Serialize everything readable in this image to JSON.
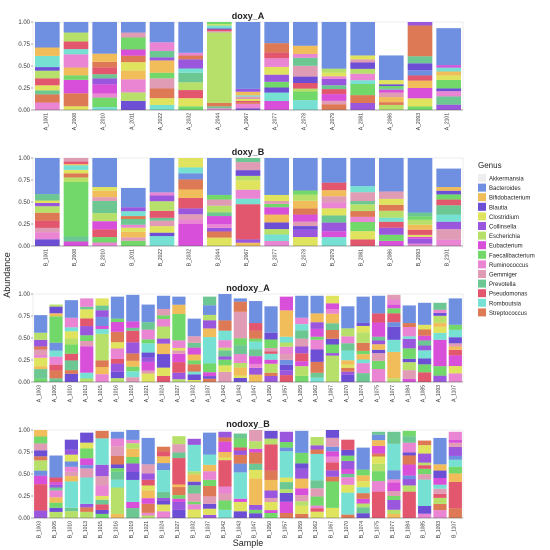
{
  "chart_data": {
    "type": "bar",
    "stacked": true,
    "xlabel": "Sample",
    "ylabel": "Abundance",
    "yticks": [
      "0.00",
      "0.25",
      "0.50",
      "0.75",
      "1.00"
    ],
    "ylim": [
      0,
      1
    ],
    "legend": {
      "title": "Genus",
      "placement": "right",
      "entries": [
        "Akkermansia",
        "Bacteroides",
        "Bifidobacterium",
        "Blautia",
        "Clostridium",
        "Collinsella",
        "Escherichia",
        "Eubacterium",
        "Faecalibacterium",
        "Ruminococcus",
        "Gemmiger",
        "Prevotella",
        "Pseudomonas",
        "Romboutsia",
        "Streptococcus"
      ]
    },
    "genus_colors": {
      "Akkermansia": "#eeeeee",
      "Bacteroides": "#6f8fe0",
      "Bifidobacterium": "#f0bd5a",
      "Blautia": "#6d4fd6",
      "Clostridium": "#dfe35e",
      "Collinsella": "#9a57dd",
      "Escherichia": "#b7e06a",
      "Eubacterium": "#d84fd9",
      "Faecalibacterium": "#72d86a",
      "Ruminococcus": "#e985d3",
      "Gemmiger": "#e09cb5",
      "Prevotella": "#6cc793",
      "Pseudomonas": "#e2576e",
      "Romboutsia": "#76e0d2",
      "Streptococcus": "#dd7a55"
    },
    "panels": [
      {
        "title": "doxy_A",
        "samples": [
          "A_1001",
          "A_2008",
          "A_2010",
          "A_2011",
          "A_2022",
          "A_2032",
          "A_2044",
          "A_2067",
          "A_2077",
          "A_2078",
          "A_2079",
          "A_2081",
          "A_2086",
          "A_2093",
          "A_2101"
        ],
        "totals": [
          1.0,
          1.0,
          1.0,
          1.0,
          1.0,
          1.0,
          1.0,
          1.0,
          1.0,
          1.0,
          1.0,
          1.0,
          0.62,
          1.0,
          0.93
        ],
        "dominant": [
          {
            "genus": "Bacteroides",
            "share": 0.29
          },
          {
            "genus": "Bacteroides",
            "share": 0.12
          },
          {
            "genus": "Bacteroides",
            "share": 0.36
          },
          {
            "genus": "Bacteroides",
            "share": 0.12
          },
          {
            "genus": "Bacteroides",
            "share": 0.23
          },
          {
            "genus": "Bacteroides",
            "share": 0.35
          },
          {
            "genus": "Escherichia",
            "share": 0.8
          },
          {
            "genus": "Bacteroides",
            "share": 0.76
          },
          {
            "genus": "Bacteroides",
            "share": 0.24
          },
          {
            "genus": "Bacteroides",
            "share": 0.27
          },
          {
            "genus": "Bacteroides",
            "share": 0.53
          },
          {
            "genus": "Bacteroides",
            "share": 0.38
          },
          {
            "genus": "Bacteroides",
            "share": 0.28
          },
          {
            "genus": "Streptococcus",
            "share": 0.35
          },
          {
            "genus": "Bacteroides",
            "share": 0.42
          }
        ]
      },
      {
        "title": "doxy_B",
        "samples": [
          "B_1001",
          "B_2008",
          "B_2010",
          "B_2011",
          "B_2022",
          "B_2032",
          "B_2044",
          "B_2067",
          "B_2077",
          "B_2078",
          "B_2079",
          "B_2081",
          "B_2086",
          "B_2093",
          "B_2101"
        ],
        "totals": [
          1.0,
          1.0,
          1.0,
          0.66,
          1.0,
          1.0,
          1.0,
          1.0,
          1.0,
          1.0,
          1.0,
          1.0,
          1.0,
          1.0,
          0.88
        ],
        "dominant": [
          {
            "genus": "Bacteroides",
            "share": 0.41
          },
          {
            "genus": "Faecalibacterium",
            "share": 0.62
          },
          {
            "genus": "Bacteroides",
            "share": 0.33
          },
          {
            "genus": "Bacteroides",
            "share": 0.22
          },
          {
            "genus": "Bacteroides",
            "share": 0.39
          },
          {
            "genus": "Eubacterium",
            "share": 0.25
          },
          {
            "genus": "Bacteroides",
            "share": 0.42
          },
          {
            "genus": "Pseudomonas",
            "share": 0.4
          },
          {
            "genus": "Bacteroides",
            "share": 0.42
          },
          {
            "genus": "Bacteroides",
            "share": 0.37
          },
          {
            "genus": "Bacteroides",
            "share": 0.28
          },
          {
            "genus": "Bacteroides",
            "share": 0.32
          },
          {
            "genus": "Bacteroides",
            "share": 0.38
          },
          {
            "genus": "Bacteroides",
            "share": 0.62
          },
          {
            "genus": "Bacteroides",
            "share": 0.21
          }
        ]
      },
      {
        "title": "nodoxy_A",
        "samples": [
          "A_1003",
          "A_1005",
          "A_1010",
          "A_1013",
          "A_1015",
          "A_1016",
          "A_1019",
          "A_1021",
          "A_1024",
          "A_1027",
          "A_1032",
          "A_1037",
          "A_1042",
          "A_1043",
          "A_1047",
          "A_1050",
          "A_1057",
          "A_1059",
          "A_1062",
          "A_1067",
          "A_1070",
          "A_1074",
          "A_1075",
          "A_1077",
          "A_1084",
          "A_1085",
          "A_1093",
          "A_1107"
        ],
        "totals": [
          0.76,
          0.88,
          0.93,
          0.95,
          0.95,
          0.97,
          0.99,
          0.88,
          0.98,
          0.97,
          0.72,
          0.97,
          1.0,
          0.95,
          0.92,
          0.86,
          0.97,
          0.98,
          0.98,
          0.98,
          0.86,
          0.97,
          0.98,
          0.99,
          0.87,
          0.9,
          0.9,
          0.95
        ],
        "dominant": [
          {
            "genus": "Bacteroides",
            "share": 0.2
          },
          {
            "genus": "Faecalibacterium",
            "share": 0.3
          },
          {
            "genus": "Bacteroides",
            "share": 0.2
          },
          {
            "genus": "Eubacterium",
            "share": 0.3
          },
          {
            "genus": "Escherichia",
            "share": 0.3
          },
          {
            "genus": "Bacteroides",
            "share": 0.25
          },
          {
            "genus": "Bacteroides",
            "share": 0.3
          },
          {
            "genus": "Bacteroides",
            "share": 0.2
          },
          {
            "genus": "Bacteroides",
            "share": 0.15
          },
          {
            "genus": "Faecalibacterium",
            "share": 0.3
          },
          {
            "genus": "Bacteroides",
            "share": 0.2
          },
          {
            "genus": "Romboutsia",
            "share": 0.3
          },
          {
            "genus": "Bacteroides",
            "share": 0.3
          },
          {
            "genus": "Gemmiger",
            "share": 0.3
          },
          {
            "genus": "Bacteroides",
            "share": 0.25
          },
          {
            "genus": "Bacteroides",
            "share": 0.3
          },
          {
            "genus": "Bifidobacterium",
            "share": 0.3
          },
          {
            "genus": "Bacteroides",
            "share": 0.25
          },
          {
            "genus": "Bacteroides",
            "share": 0.2
          },
          {
            "genus": "Escherichia",
            "share": 0.3
          },
          {
            "genus": "Bacteroides",
            "share": 0.25
          },
          {
            "genus": "Bacteroides",
            "share": 0.3
          },
          {
            "genus": "Bacteroides",
            "share": 0.2
          },
          {
            "genus": "Bifidobacterium",
            "share": 0.3
          },
          {
            "genus": "Bacteroides",
            "share": 0.2
          },
          {
            "genus": "Bacteroides",
            "share": 0.25
          },
          {
            "genus": "Eubacterium",
            "share": 0.3
          },
          {
            "genus": "Bacteroides",
            "share": 0.3
          }
        ]
      },
      {
        "title": "nodoxy_B",
        "samples": [
          "B_1003",
          "B_1005",
          "B_1010",
          "B_1013",
          "B_1015",
          "B_1016",
          "B_1019",
          "B_1021",
          "B_1024",
          "B_1027",
          "B_1032",
          "B_1037",
          "B_1042",
          "B_1043",
          "B_1047",
          "B_1050",
          "B_1057",
          "B_1059",
          "B_1062",
          "B_1067",
          "B_1070",
          "B_1074",
          "B_1075",
          "B_1077",
          "B_1084",
          "B_1085",
          "B_1093",
          "B_1107"
        ],
        "totals": [
          1.0,
          0.71,
          0.89,
          0.97,
          0.99,
          0.98,
          1.0,
          0.91,
          0.81,
          0.93,
          0.9,
          0.97,
          0.98,
          0.96,
          1.0,
          0.99,
          0.98,
          0.99,
          0.92,
          1.0,
          0.89,
          0.8,
          0.98,
          0.98,
          0.99,
          0.88,
          0.91,
          0.98
        ],
        "dominant": [
          {
            "genus": "Pseudomonas",
            "share": 0.3
          },
          {
            "genus": "Bacteroides",
            "share": 0.25
          },
          {
            "genus": "Romboutsia",
            "share": 0.3
          },
          {
            "genus": "Romboutsia",
            "share": 0.3
          },
          {
            "genus": "Romboutsia",
            "share": 0.3
          },
          {
            "genus": "Escherichia",
            "share": 0.3
          },
          {
            "genus": "Romboutsia",
            "share": 0.25
          },
          {
            "genus": "Bacteroides",
            "share": 0.3
          },
          {
            "genus": "Romboutsia",
            "share": 0.25
          },
          {
            "genus": "Pseudomonas",
            "share": 0.3
          },
          {
            "genus": "Romboutsia",
            "share": 0.3
          },
          {
            "genus": "Bacteroides",
            "share": 0.25
          },
          {
            "genus": "Pseudomonas",
            "share": 0.3
          },
          {
            "genus": "Romboutsia",
            "share": 0.3
          },
          {
            "genus": "Bifidobacterium",
            "share": 0.3
          },
          {
            "genus": "Pseudomonas",
            "share": 0.3
          },
          {
            "genus": "Romboutsia",
            "share": 0.3
          },
          {
            "genus": "Bacteroides",
            "share": 0.25
          },
          {
            "genus": "Romboutsia",
            "share": 0.3
          },
          {
            "genus": "Faecalibacterium",
            "share": 0.3
          },
          {
            "genus": "Romboutsia",
            "share": 0.25
          },
          {
            "genus": "Bacteroides",
            "share": 0.25
          },
          {
            "genus": "Pseudomonas",
            "share": 0.3
          },
          {
            "genus": "Romboutsia",
            "share": 0.3
          },
          {
            "genus": "Pseudomonas",
            "share": 0.3
          },
          {
            "genus": "Romboutsia",
            "share": 0.3
          },
          {
            "genus": "Bacteroides",
            "share": 0.3
          },
          {
            "genus": "Pseudomonas",
            "share": 0.3
          }
        ]
      }
    ]
  }
}
